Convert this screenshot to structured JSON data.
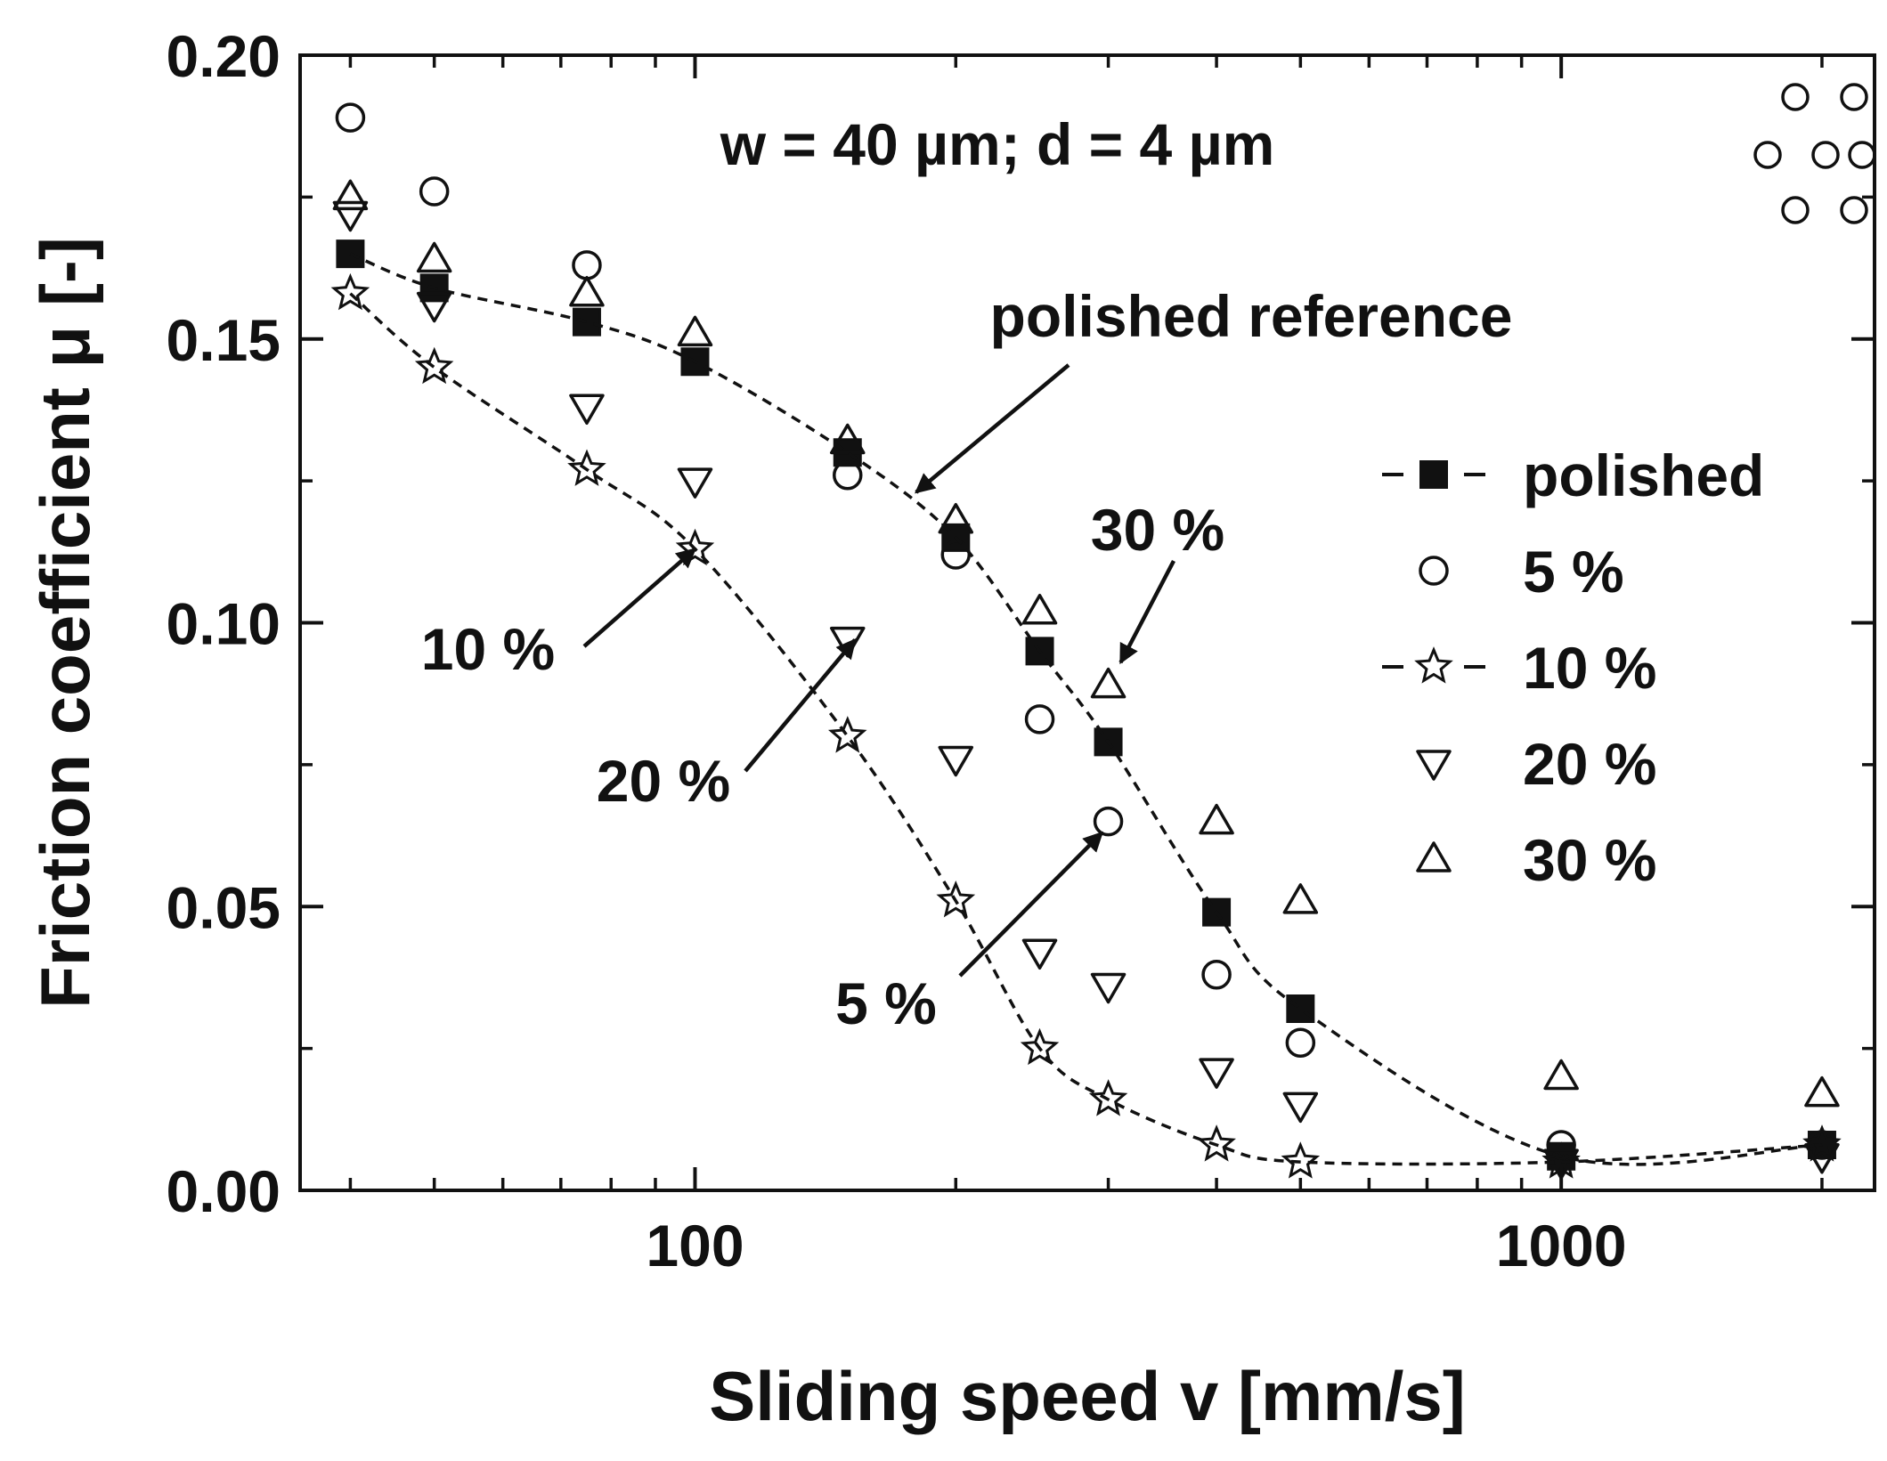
{
  "chart_data": {
    "type": "scatter",
    "x_scale": "log",
    "xlim": [
      35,
      2300
    ],
    "ylim": [
      0,
      0.2
    ],
    "xlabel": "Sliding speed v [mm/s]",
    "ylabel": "Friction coefficient μ [-]",
    "x_tick_values": [
      100,
      1000
    ],
    "x_tick_labels": [
      "100",
      "1000"
    ],
    "y_tick_values": [
      0,
      0.05,
      0.1,
      0.15,
      0.2
    ],
    "y_tick_labels": [
      "0.00",
      "0.05",
      "0.10",
      "0.15",
      "0.20"
    ],
    "title_annotation": "w = 40 µm; d = 4 µm",
    "pattern_icon": "hexagonal-dimple-pattern-icon",
    "legend_position": "right",
    "series": [
      {
        "name": "polished",
        "marker": "filled-square",
        "dashed_line": true,
        "x": [
          40,
          50,
          75,
          100,
          150,
          200,
          250,
          300,
          400,
          500,
          1000,
          2000
        ],
        "y": [
          0.165,
          0.159,
          0.153,
          0.146,
          0.13,
          0.115,
          0.095,
          0.079,
          0.049,
          0.032,
          0.006,
          0.008
        ]
      },
      {
        "name": "5 %",
        "marker": "open-circle",
        "dashed_line": false,
        "x": [
          40,
          50,
          75,
          150,
          200,
          250,
          300,
          400,
          500,
          1000,
          2000
        ],
        "y": [
          0.189,
          0.176,
          0.163,
          0.126,
          0.112,
          0.083,
          0.065,
          0.038,
          0.026,
          0.008,
          0.008
        ]
      },
      {
        "name": "10 %",
        "marker": "open-star",
        "dashed_line": true,
        "x": [
          40,
          50,
          75,
          100,
          150,
          200,
          250,
          300,
          400,
          500,
          1000,
          2000
        ],
        "y": [
          0.158,
          0.145,
          0.127,
          0.113,
          0.08,
          0.051,
          0.025,
          0.016,
          0.008,
          0.005,
          0.005,
          0.008
        ]
      },
      {
        "name": "20 %",
        "marker": "open-triangle-down",
        "dashed_line": false,
        "x": [
          40,
          50,
          75,
          100,
          150,
          200,
          250,
          300,
          400,
          500,
          1000,
          2000
        ],
        "y": [
          0.172,
          0.156,
          0.138,
          0.125,
          0.097,
          0.076,
          0.042,
          0.036,
          0.021,
          0.015,
          0.005,
          0.006
        ]
      },
      {
        "name": "30 %",
        "marker": "open-triangle-up",
        "dashed_line": false,
        "x": [
          40,
          50,
          75,
          100,
          150,
          200,
          250,
          300,
          400,
          500,
          1000,
          2000
        ],
        "y": [
          0.175,
          0.164,
          0.158,
          0.151,
          0.132,
          0.118,
          0.102,
          0.089,
          0.065,
          0.051,
          0.02,
          0.017
        ]
      }
    ],
    "annotations": [
      {
        "text": "polished reference",
        "points_to": [
          180,
          0.123
        ]
      },
      {
        "text": "30 %",
        "points_to": [
          310,
          0.093
        ]
      },
      {
        "text": "10 %",
        "points_to": [
          100,
          0.113
        ]
      },
      {
        "text": "20 %",
        "points_to": [
          153,
          0.097
        ]
      },
      {
        "text": "5 %",
        "points_to": [
          295,
          0.063
        ]
      }
    ]
  }
}
